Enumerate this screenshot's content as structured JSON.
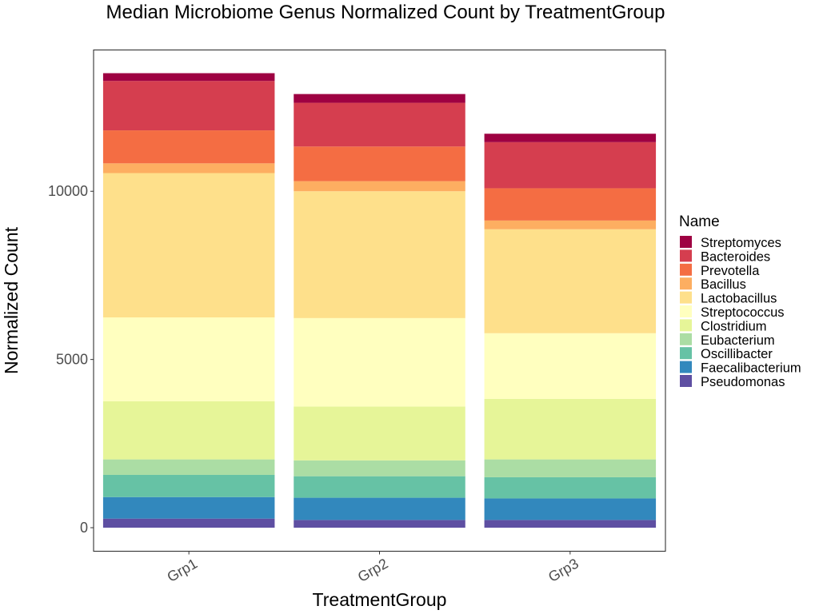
{
  "chart_data": {
    "type": "bar",
    "stacked": true,
    "title": "Median Microbiome Genus Normalized Count by TreatmentGroup",
    "xlabel": "TreatmentGroup",
    "ylabel": "Normalized Count",
    "categories": [
      "Grp1",
      "Grp2",
      "Grp3"
    ],
    "ylim": [
      -700,
      14200
    ],
    "yticks": [
      0,
      5000,
      10000
    ],
    "grid": false,
    "legend": {
      "title": "Name",
      "position": "right",
      "order": [
        "Streptomyces",
        "Bacteroides",
        "Prevotella",
        "Bacillus",
        "Lactobacillus",
        "Streptococcus",
        "Clostridium",
        "Eubacterium",
        "Oscillibacter",
        "Faecalibacterium",
        "Pseudomonas"
      ]
    },
    "series": [
      {
        "name": "Pseudomonas",
        "color": "#5E4FA2",
        "values": [
          270,
          230,
          230
        ]
      },
      {
        "name": "Faecalibacterium",
        "color": "#3288BD",
        "values": [
          640,
          660,
          640
        ]
      },
      {
        "name": "Oscillibacter",
        "color": "#66C2A5",
        "values": [
          660,
          640,
          630
        ]
      },
      {
        "name": "Eubacterium",
        "color": "#ABDDA4",
        "values": [
          460,
          470,
          530
        ]
      },
      {
        "name": "Clostridium",
        "color": "#E6F598",
        "values": [
          1730,
          1600,
          1800
        ]
      },
      {
        "name": "Streptococcus",
        "color": "#FFFFBF",
        "values": [
          2490,
          2630,
          1950
        ]
      },
      {
        "name": "Lactobacillus",
        "color": "#FEE08B",
        "values": [
          4290,
          3770,
          3090
        ]
      },
      {
        "name": "Bacillus",
        "color": "#FDAE61",
        "values": [
          290,
          300,
          260
        ]
      },
      {
        "name": "Prevotella",
        "color": "#F46D43",
        "values": [
          980,
          1030,
          960
        ]
      },
      {
        "name": "Bacteroides",
        "color": "#D53E4F",
        "values": [
          1470,
          1300,
          1370
        ]
      },
      {
        "name": "Streptomyces",
        "color": "#9E0142",
        "values": [
          230,
          260,
          250
        ]
      }
    ]
  }
}
